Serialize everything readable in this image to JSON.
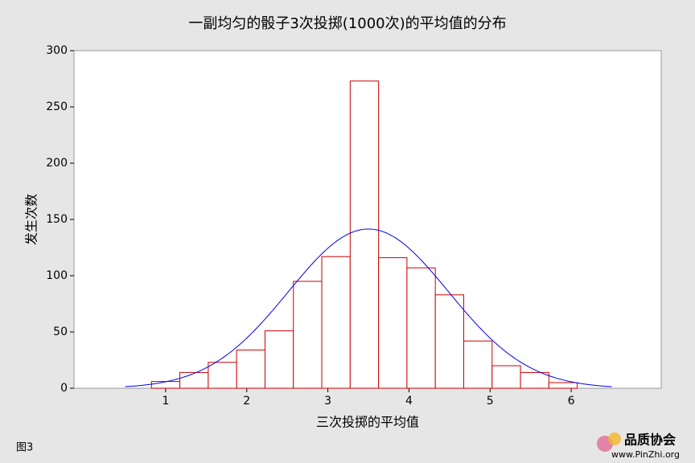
{
  "chart_data": {
    "type": "histogram",
    "title": "一副均匀的骰子3次投掷(1000次)的平均值的分布",
    "x_label": "三次投掷的平均值",
    "y_label": "发生次数",
    "bins": [
      0.825,
      1.175,
      1.525,
      1.875,
      2.225,
      2.575,
      2.925,
      3.275,
      3.625,
      3.975,
      4.325,
      4.675,
      5.025,
      5.375,
      5.725,
      6.075
    ],
    "values": [
      6,
      14,
      23,
      34,
      51,
      95,
      117,
      273,
      116,
      107,
      83,
      42,
      20,
      14,
      5
    ],
    "color": "#cc0000",
    "xlim": [
      -0.13,
      7.11
    ],
    "xticks": [
      1,
      2,
      3,
      4,
      5,
      6
    ],
    "ylim": [
      0,
      300
    ],
    "yticks": [
      0,
      50,
      100,
      150,
      200,
      250,
      300
    ],
    "fit_curve": {
      "mean": 3.5,
      "sd": 0.987,
      "n": 1000,
      "range": [
        0.5,
        6.5
      ],
      "color": "#0000ee"
    }
  },
  "figure_label": "图3",
  "watermark": {
    "name": "品质协会",
    "url": "www.PinZhi.org"
  }
}
